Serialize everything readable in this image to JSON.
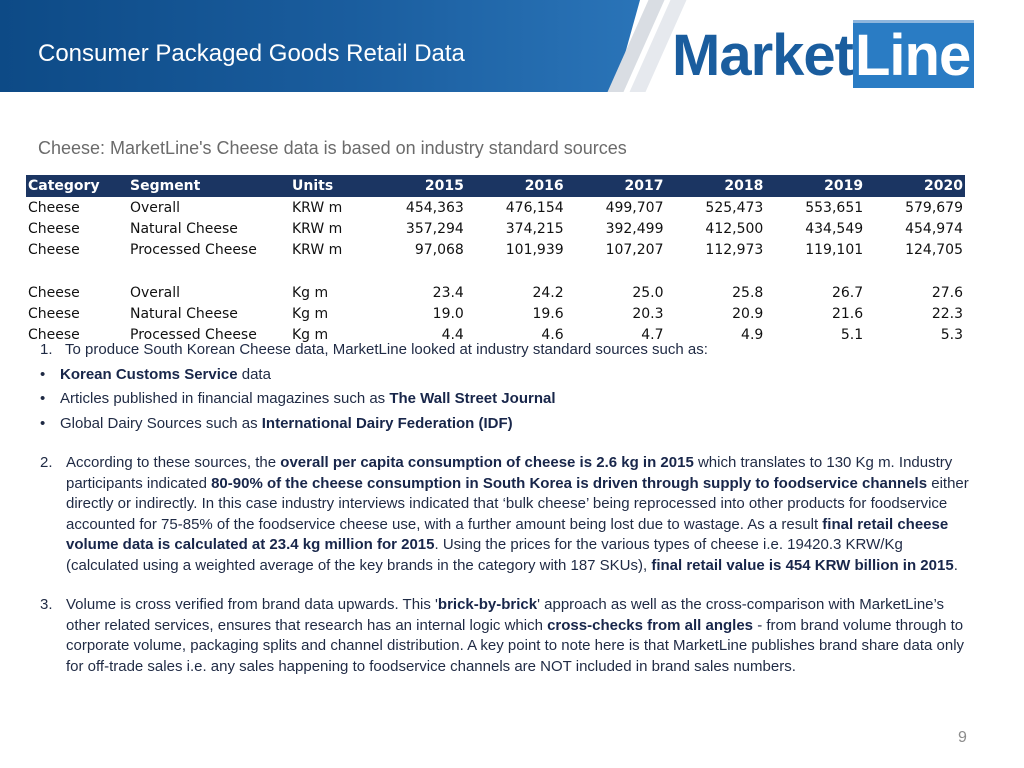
{
  "header": {
    "title": "Consumer Packaged Goods Retail Data",
    "logo_text_market": "Market",
    "logo_text_line": "Line"
  },
  "subtitle": "Cheese: MarketLine's Cheese data is based on industry standard sources",
  "table": {
    "headers": [
      "Category",
      "Segment",
      "Units",
      "2015",
      "2016",
      "2017",
      "2018",
      "2019",
      "2020"
    ],
    "rows": [
      [
        "Cheese",
        "Overall",
        "KRW m",
        "454,363",
        "476,154",
        "499,707",
        "525,473",
        "553,651",
        "579,679"
      ],
      [
        "Cheese",
        "Natural Cheese",
        "KRW m",
        "357,294",
        "374,215",
        "392,499",
        "412,500",
        "434,549",
        "454,974"
      ],
      [
        "Cheese",
        "Processed Cheese",
        "KRW m",
        "97,068",
        "101,939",
        "107,207",
        "112,973",
        "119,101",
        "124,705"
      ],
      [
        "Cheese",
        "Overall",
        "Kg m",
        "23.4",
        "24.2",
        "25.0",
        "25.8",
        "26.7",
        "27.6"
      ],
      [
        "Cheese",
        "Natural Cheese",
        "Kg m",
        "19.0",
        "19.6",
        "20.3",
        "20.9",
        "21.6",
        "22.3"
      ],
      [
        "Cheese",
        "Processed Cheese",
        "Kg m",
        "4.4",
        "4.6",
        "4.7",
        "4.9",
        "5.1",
        "5.3"
      ]
    ]
  },
  "notes": {
    "item1": {
      "number": "1.",
      "text": "To produce South Korean Cheese data, MarketLine looked at industry standard sources such as:",
      "bullets": [
        {
          "bold": "Korean Customs Service",
          "after": " data"
        },
        {
          "before": "Articles published in financial magazines such as ",
          "bold": "The Wall Street Journal"
        },
        {
          "before": "Global Dairy Sources such as ",
          "bold": "International Dairy Federation (IDF)"
        }
      ]
    },
    "item2": {
      "number": "2.",
      "parts": [
        "According to these sources, the ",
        "overall per capita consumption of cheese is 2.6 kg in 2015",
        " which translates to 130 Kg m. Industry participants indicated ",
        "80-90% of the cheese consumption in South Korea is driven through supply to foodservice channels",
        " either directly or indirectly. In this case industry interviews indicated that ‘bulk cheese’ being reprocessed into other products for foodservice accounted for 75-85% of the foodservice cheese use, with a further amount being lost due to wastage. As a result ",
        "final retail cheese volume data is calculated at 23.4 kg million for 2015",
        ". Using the prices for the various types of cheese i.e. 19420.3 KRW/Kg (calculated using a weighted average of the key brands in the category with 187 SKUs), ",
        "final retail value is 454 KRW billion in 2015",
        "."
      ]
    },
    "item3": {
      "number": "3.",
      "parts": [
        "Volume is cross verified from brand data upwards. This '",
        "brick-by-brick",
        "' approach as well as the cross-comparison with MarketLine’s other related services, ensures that research has an internal logic which ",
        "cross-checks from all angles",
        " - from brand volume through to corporate volume, packaging splits and channel distribution. A key point to note here is that MarketLine publishes brand share data only for off-trade sales i.e. any sales happening to foodservice channels are NOT included in brand sales numbers."
      ]
    }
  },
  "page_number": "9"
}
